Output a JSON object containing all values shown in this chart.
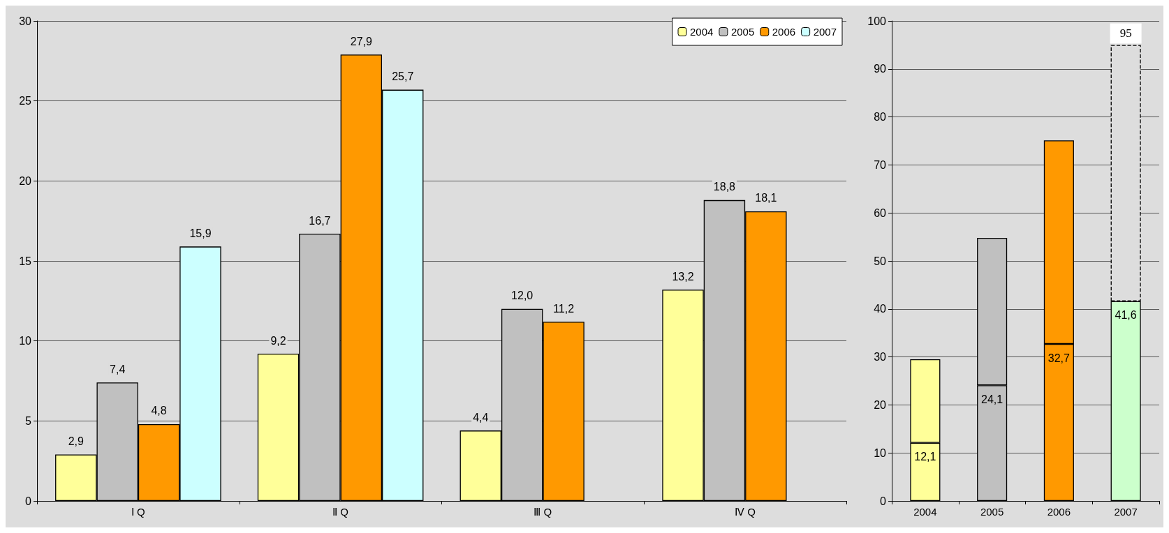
{
  "chart_data": [
    {
      "type": "bar",
      "categories": [
        "Ⅰ Q",
        "Ⅱ Q",
        "Ⅲ Q",
        "Ⅳ Q"
      ],
      "ylim": [
        0,
        30
      ],
      "yticks": [
        0,
        5,
        10,
        15,
        20,
        25,
        30
      ],
      "grid": "y",
      "legend": "top right",
      "series": [
        {
          "name": "2004",
          "color": "#ffff99",
          "values": [
            2.9,
            9.2,
            4.4,
            13.2
          ],
          "value_labels": [
            "2,9",
            "9,2",
            "4,4",
            "13,2"
          ]
        },
        {
          "name": "2005",
          "color": "#c0c0c0",
          "values": [
            7.4,
            16.7,
            12.0,
            18.8
          ],
          "value_labels": [
            "7,4",
            "16,7",
            "12,0",
            "18,8"
          ]
        },
        {
          "name": "2006",
          "color": "#ff9900",
          "values": [
            4.8,
            27.9,
            11.2,
            18.1
          ],
          "value_labels": [
            "4,8",
            "27,9",
            "11,2",
            "18,1"
          ]
        },
        {
          "name": "2007",
          "color": "#ccffff",
          "values": [
            15.9,
            25.7,
            null,
            null
          ],
          "value_labels": [
            "15,9",
            "25,7",
            null,
            null
          ]
        }
      ]
    },
    {
      "type": "bar",
      "stacked": true,
      "categories": [
        "2004",
        "2005",
        "2006",
        "2007"
      ],
      "ylim": [
        0,
        100
      ],
      "yticks": [
        0,
        10,
        20,
        30,
        40,
        50,
        60,
        70,
        80,
        90,
        100
      ],
      "grid": "y",
      "legend": false,
      "totals": [
        null,
        null,
        null,
        "95"
      ],
      "series": [
        {
          "colors": [
            "#ffff99",
            "#c0c0c0",
            "#ff9900",
            "#ccffcc"
          ],
          "values": [
            12.1,
            24.1,
            32.7,
            41.6
          ],
          "value_labels": [
            "12,1",
            "24,1",
            "32,7",
            "41,6"
          ]
        },
        {
          "colors": [
            "#ffff99",
            "#c0c0c0",
            "#ff9900",
            null
          ],
          "values": [
            17.4,
            30.7,
            42.4,
            null
          ]
        },
        {
          "colors": [
            null,
            null,
            null,
            "#dddddd"
          ],
          "values": [
            null,
            null,
            null,
            53.4
          ],
          "line_style": "dashed"
        }
      ]
    }
  ]
}
